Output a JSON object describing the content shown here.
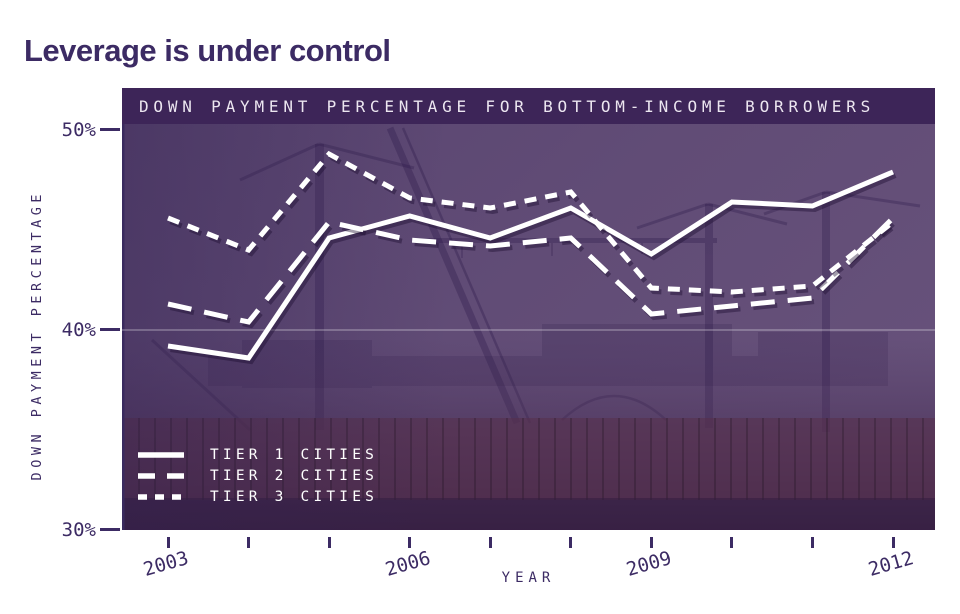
{
  "title": "Leverage is under control",
  "chart_data": {
    "type": "line",
    "title": "DOWN PAYMENT PERCENTAGE FOR BOTTOM-INCOME BORROWERS",
    "xlabel": "YEAR",
    "ylabel": "DOWN PAYMENT PERCENTAGE",
    "x": [
      2003,
      2004,
      2005,
      2006,
      2007,
      2008,
      2009,
      2010,
      2011,
      2012
    ],
    "x_labeled_ticks": [
      2003,
      2006,
      2009,
      2012
    ],
    "x_tick_labels": [
      "2003",
      "2006",
      "2009",
      "2012"
    ],
    "ylim": [
      30,
      50
    ],
    "y_ticks": [
      50,
      40,
      30
    ],
    "y_tick_labels": [
      "50%",
      "40%",
      "30%"
    ],
    "gridlines_y": [
      40
    ],
    "grid": "single faint horizontal gridline at 40%",
    "legend_position": "inside bottom-left",
    "series": [
      {
        "name": "TIER 1 CITIES",
        "style": "solid",
        "values": [
          39.2,
          38.6,
          44.6,
          45.7,
          44.6,
          46.1,
          43.8,
          46.4,
          46.2,
          47.9
        ]
      },
      {
        "name": "TIER 2 CITIES",
        "style": "long-dash",
        "values": [
          41.3,
          40.4,
          45.4,
          44.5,
          44.2,
          44.6,
          40.8,
          41.2,
          41.6,
          45.6
        ]
      },
      {
        "name": "TIER 3 CITIES",
        "style": "short-dash",
        "values": [
          45.6,
          44.0,
          48.8,
          46.6,
          46.1,
          46.9,
          42.1,
          41.9,
          42.2,
          45.4
        ]
      }
    ]
  },
  "colors": {
    "title": "#3c2b64",
    "axis": "#3c2b64",
    "header_bg": "#3d2558",
    "header_text": "#ece6f0",
    "plot_bg": "#5e4a72",
    "plot_bg_dark": "#3c2347",
    "fence_red": "#57304b",
    "line": "#ffffff",
    "gridline": "rgba(255,255,255,0.32)",
    "line_shadow": "rgba(25,10,45,0.4)"
  }
}
